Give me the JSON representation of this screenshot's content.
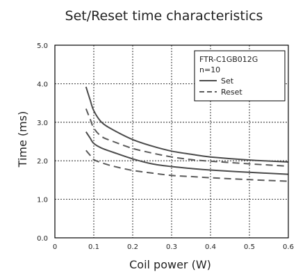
{
  "chart_data": {
    "type": "line",
    "title": "Set/Reset time characteristics",
    "xlabel": "Coil power (W)",
    "ylabel": "Time (ms)",
    "xlim": [
      0,
      0.6
    ],
    "ylim": [
      0,
      5.0
    ],
    "x_ticks": [
      "0",
      "0.1",
      "0.2",
      "0.3",
      "0.4",
      "0.5",
      "0.6"
    ],
    "y_ticks": [
      "0.0",
      "1.0",
      "2.0",
      "3.0",
      "4.0",
      "5.0"
    ],
    "grid": true,
    "legend": {
      "placement": "top-right",
      "header": [
        "FTR-C1GB012G",
        "n=10"
      ],
      "entries": [
        "Set",
        "Reset"
      ]
    },
    "series": [
      {
        "name": "Set",
        "style": "solid",
        "color": "#4a4a4a",
        "x": [
          0.08,
          0.09,
          0.1,
          0.12,
          0.15,
          0.2,
          0.25,
          0.3,
          0.35,
          0.4,
          0.5,
          0.6
        ],
        "y": [
          3.92,
          3.6,
          3.3,
          3.0,
          2.8,
          2.55,
          2.38,
          2.25,
          2.17,
          2.1,
          2.02,
          1.97
        ]
      },
      {
        "name": "Set",
        "style": "solid",
        "color": "#4a4a4a",
        "x": [
          0.08,
          0.09,
          0.1,
          0.12,
          0.15,
          0.2,
          0.25,
          0.3,
          0.35,
          0.4,
          0.5,
          0.6
        ],
        "y": [
          2.75,
          2.6,
          2.45,
          2.33,
          2.22,
          2.05,
          1.92,
          1.85,
          1.8,
          1.76,
          1.7,
          1.65
        ]
      },
      {
        "name": "Reset",
        "style": "dashed",
        "color": "#5a5a5a",
        "x": [
          0.08,
          0.09,
          0.1,
          0.12,
          0.15,
          0.2,
          0.25,
          0.3,
          0.35,
          0.4,
          0.5,
          0.6
        ],
        "y": [
          3.35,
          3.1,
          2.85,
          2.63,
          2.5,
          2.32,
          2.2,
          2.1,
          2.03,
          1.99,
          1.92,
          1.86
        ]
      },
      {
        "name": "Reset",
        "style": "dashed",
        "color": "#5a5a5a",
        "x": [
          0.08,
          0.09,
          0.1,
          0.12,
          0.15,
          0.2,
          0.25,
          0.3,
          0.35,
          0.4,
          0.5,
          0.6
        ],
        "y": [
          2.27,
          2.15,
          2.03,
          1.95,
          1.86,
          1.75,
          1.68,
          1.62,
          1.59,
          1.56,
          1.51,
          1.47
        ]
      }
    ]
  }
}
